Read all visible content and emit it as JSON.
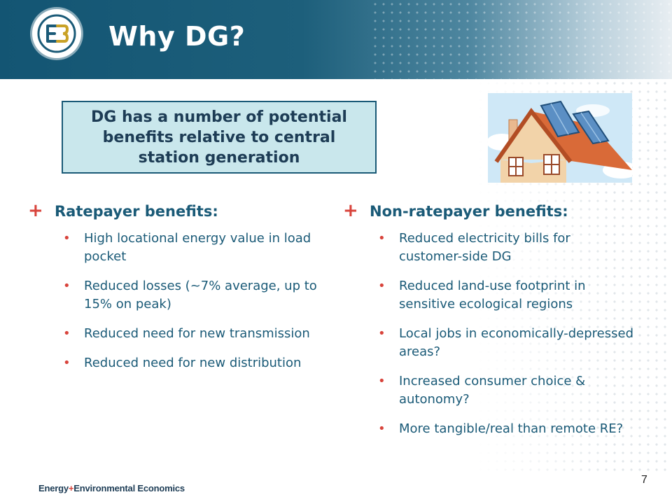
{
  "slide": {
    "title": "Why DG?",
    "callout": "DG has a number of potential benefits relative to central station generation",
    "page_number": "7"
  },
  "left": {
    "heading": "Ratepayer benefits:",
    "marker": "+",
    "items": [
      "High locational energy value in load pocket",
      "Reduced losses (~7% average, up to 15% on peak)",
      "Reduced need for new transmission",
      "Reduced need for new distribution"
    ]
  },
  "right": {
    "heading": "Non-ratepayer benefits:",
    "marker": "+",
    "items": [
      "Reduced electricity bills for customer-side DG",
      "Reduced land-use footprint in sensitive ecological regions",
      "Local jobs in economically-depressed areas?",
      "Increased consumer choice & autonomy?",
      "More tangible/real than remote RE?"
    ]
  },
  "footer": {
    "brand_part1": "Energy",
    "brand_plus": "+",
    "brand_part2": "Environmental Economics"
  },
  "icons": {
    "logo": "e3-logo-icon",
    "house": "house-solar-panels-icon",
    "bullet": "bullet-icon"
  },
  "colors": {
    "header": "#135573",
    "accent": "#d8433b",
    "text": "#1a5a77",
    "callout_bg": "#c9e7ec"
  }
}
